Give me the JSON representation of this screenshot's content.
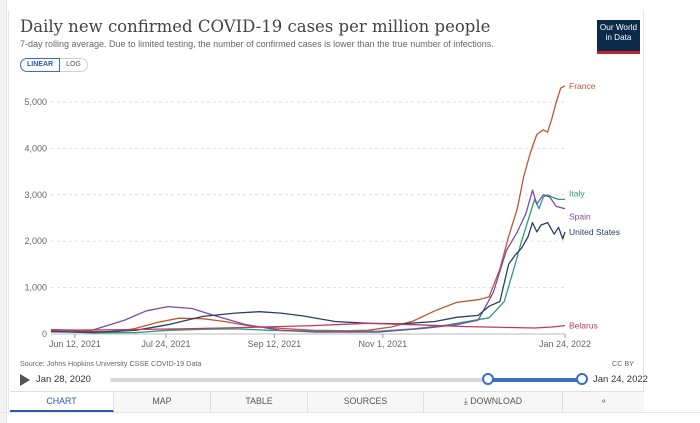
{
  "header": {
    "title": "Daily new confirmed COVID-19 cases per million people",
    "subtitle": "7-day rolling average. Due to limited testing, the number of confirmed cases is lower than the true number of infections.",
    "logo_line1": "Our World",
    "logo_line2": "in Data"
  },
  "scale_toggle": {
    "linear": "LINEAR",
    "log": "LOG",
    "selected": "LINEAR"
  },
  "chart_data": {
    "type": "line",
    "title": "Daily new confirmed COVID-19 cases per million people",
    "ylim": [
      0,
      5000
    ],
    "yticks": [
      0,
      1000,
      2000,
      3000,
      4000,
      5000
    ],
    "ytick_labels": [
      "0",
      "1,000",
      "2,000",
      "3,000",
      "4,000",
      "5,000"
    ],
    "xlim": [
      "2021-06-01",
      "2022-01-24"
    ],
    "xticks": [
      "2021-06-12",
      "2021-07-24",
      "2021-09-12",
      "2021-11-01",
      "2022-01-24"
    ],
    "xtick_labels": [
      "Jun 12, 2021",
      "Jul 24, 2021",
      "Sep 12, 2021",
      "Nov 1, 2021",
      "Jan 24, 2022"
    ],
    "grid": true,
    "legend": "end-of-line labels",
    "series": [
      {
        "name": "France",
        "color": "#c0582f",
        "points": [
          [
            "2021-06-01",
            100
          ],
          [
            "2021-06-15",
            60
          ],
          [
            "2021-06-30",
            40
          ],
          [
            "2021-07-10",
            120
          ],
          [
            "2021-07-20",
            250
          ],
          [
            "2021-07-30",
            340
          ],
          [
            "2021-08-10",
            330
          ],
          [
            "2021-08-20",
            270
          ],
          [
            "2021-09-01",
            170
          ],
          [
            "2021-09-15",
            120
          ],
          [
            "2021-09-30",
            80
          ],
          [
            "2021-10-15",
            70
          ],
          [
            "2021-10-25",
            80
          ],
          [
            "2021-11-05",
            150
          ],
          [
            "2021-11-15",
            280
          ],
          [
            "2021-11-25",
            500
          ],
          [
            "2021-12-05",
            680
          ],
          [
            "2021-12-15",
            740
          ],
          [
            "2021-12-20",
            800
          ],
          [
            "2021-12-25",
            1400
          ],
          [
            "2021-12-29",
            2100
          ],
          [
            "2022-01-02",
            2700
          ],
          [
            "2022-01-05",
            3400
          ],
          [
            "2022-01-08",
            3900
          ],
          [
            "2022-01-11",
            4300
          ],
          [
            "2022-01-14",
            4400
          ],
          [
            "2022-01-16",
            4350
          ],
          [
            "2022-01-18",
            4650
          ],
          [
            "2022-01-20",
            5000
          ],
          [
            "2022-01-22",
            5300
          ],
          [
            "2022-01-24",
            5350
          ]
        ]
      },
      {
        "name": "Italy",
        "color": "#2e9a80",
        "points": [
          [
            "2021-06-01",
            60
          ],
          [
            "2021-06-20",
            25
          ],
          [
            "2021-07-10",
            30
          ],
          [
            "2021-07-25",
            80
          ],
          [
            "2021-08-10",
            100
          ],
          [
            "2021-08-25",
            110
          ],
          [
            "2021-09-10",
            80
          ],
          [
            "2021-09-30",
            60
          ],
          [
            "2021-10-15",
            50
          ],
          [
            "2021-10-30",
            60
          ],
          [
            "2021-11-15",
            110
          ],
          [
            "2021-11-30",
            190
          ],
          [
            "2021-12-10",
            270
          ],
          [
            "2021-12-20",
            350
          ],
          [
            "2021-12-27",
            700
          ],
          [
            "2022-01-01",
            1500
          ],
          [
            "2022-01-04",
            2000
          ],
          [
            "2022-01-07",
            2450
          ],
          [
            "2022-01-10",
            2900
          ],
          [
            "2022-01-12",
            2700
          ],
          [
            "2022-01-14",
            2950
          ],
          [
            "2022-01-16",
            3000
          ],
          [
            "2022-01-18",
            2950
          ],
          [
            "2022-01-21",
            2900
          ],
          [
            "2022-01-24",
            2900
          ]
        ]
      },
      {
        "name": "Spain",
        "color": "#7a4fa3",
        "points": [
          [
            "2021-06-01",
            90
          ],
          [
            "2021-06-20",
            80
          ],
          [
            "2021-07-05",
            300
          ],
          [
            "2021-07-15",
            500
          ],
          [
            "2021-07-25",
            590
          ],
          [
            "2021-08-05",
            550
          ],
          [
            "2021-08-15",
            400
          ],
          [
            "2021-08-30",
            200
          ],
          [
            "2021-09-15",
            80
          ],
          [
            "2021-10-01",
            40
          ],
          [
            "2021-10-30",
            40
          ],
          [
            "2021-11-20",
            120
          ],
          [
            "2021-12-05",
            200
          ],
          [
            "2021-12-15",
            300
          ],
          [
            "2021-12-22",
            900
          ],
          [
            "2021-12-28",
            1800
          ],
          [
            "2022-01-02",
            2200
          ],
          [
            "2022-01-06",
            2600
          ],
          [
            "2022-01-09",
            3100
          ],
          [
            "2022-01-11",
            2800
          ],
          [
            "2022-01-14",
            3000
          ],
          [
            "2022-01-17",
            2950
          ],
          [
            "2022-01-20",
            2750
          ],
          [
            "2022-01-24",
            2700
          ]
        ]
      },
      {
        "name": "United States",
        "color": "#2b3f63",
        "points": [
          [
            "2021-06-01",
            50
          ],
          [
            "2021-06-20",
            35
          ],
          [
            "2021-07-10",
            80
          ],
          [
            "2021-07-25",
            200
          ],
          [
            "2021-08-10",
            380
          ],
          [
            "2021-08-25",
            450
          ],
          [
            "2021-09-05",
            480
          ],
          [
            "2021-09-15",
            450
          ],
          [
            "2021-09-25",
            390
          ],
          [
            "2021-10-10",
            270
          ],
          [
            "2021-10-25",
            230
          ],
          [
            "2021-11-10",
            220
          ],
          [
            "2021-11-25",
            270
          ],
          [
            "2021-12-05",
            360
          ],
          [
            "2021-12-15",
            400
          ],
          [
            "2021-12-20",
            600
          ],
          [
            "2021-12-25",
            700
          ],
          [
            "2021-12-29",
            1500
          ],
          [
            "2022-01-01",
            1700
          ],
          [
            "2022-01-04",
            1850
          ],
          [
            "2022-01-07",
            2100
          ],
          [
            "2022-01-09",
            2400
          ],
          [
            "2022-01-11",
            2200
          ],
          [
            "2022-01-13",
            2350
          ],
          [
            "2022-01-16",
            2400
          ],
          [
            "2022-01-19",
            2150
          ],
          [
            "2022-01-21",
            2300
          ],
          [
            "2022-01-23",
            2050
          ],
          [
            "2022-01-24",
            2200
          ]
        ]
      },
      {
        "name": "Belarus",
        "color": "#c23865",
        "points": [
          [
            "2021-06-01",
            80
          ],
          [
            "2021-06-30",
            90
          ],
          [
            "2021-07-30",
            110
          ],
          [
            "2021-08-30",
            140
          ],
          [
            "2021-09-30",
            180
          ],
          [
            "2021-10-25",
            230
          ],
          [
            "2021-11-15",
            200
          ],
          [
            "2021-12-10",
            160
          ],
          [
            "2021-12-30",
            140
          ],
          [
            "2022-01-10",
            130
          ],
          [
            "2022-01-18",
            150
          ],
          [
            "2022-01-24",
            180
          ]
        ]
      }
    ]
  },
  "footer": {
    "source": "Source: Johns Hopkins University CSSE COVID-19 Data",
    "license": "CC BY"
  },
  "timeline": {
    "start_label": "Jan 28, 2020",
    "end_label": "Jan 24, 2022",
    "selected_start_fraction": 0.8,
    "selected_end_fraction": 1.0
  },
  "tabs": [
    {
      "label": "CHART",
      "active": true
    },
    {
      "label": "MAP",
      "active": false
    },
    {
      "label": "TABLE",
      "active": false
    },
    {
      "label": "SOURCES",
      "active": false
    },
    {
      "label": "DOWNLOAD",
      "active": false
    }
  ],
  "icons": {
    "play": "play-icon",
    "download": "download-icon",
    "share": "share-icon"
  }
}
